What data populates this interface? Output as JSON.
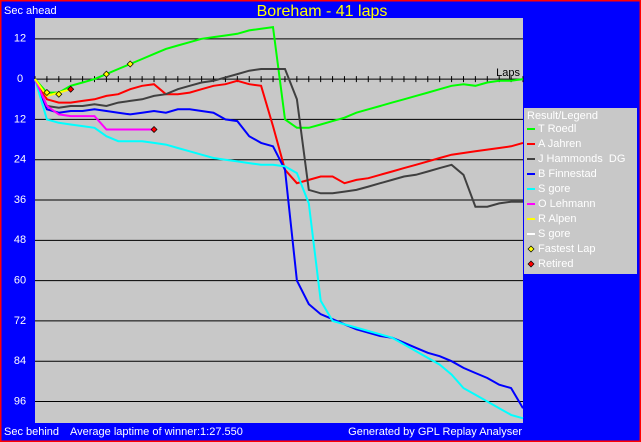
{
  "chart_data": {
    "type": "line",
    "title": "Boreham - 41 laps",
    "y_label": "Sec ahead",
    "y_label_bottom": "Sec behind",
    "x_label": "Laps",
    "note": "Average laptime of winner:1:27.550",
    "credit": "Generated by GPL Replay Analyser",
    "legend_title": "Result/Legend",
    "grid": true,
    "xlim": [
      0,
      41
    ],
    "ylim": [
      -102.4,
      18.2
    ],
    "yticks": [
      {
        "value": 12,
        "label": "12"
      },
      0,
      {
        "value": -12,
        "label": "12"
      },
      {
        "value": -24,
        "label": "24"
      },
      {
        "value": -36,
        "label": "36"
      },
      {
        "value": -48,
        "label": "48"
      },
      {
        "value": -60,
        "label": "60"
      },
      {
        "value": -72,
        "label": "72"
      },
      {
        "value": -84,
        "label": "84"
      },
      {
        "value": -96,
        "label": "96"
      }
    ],
    "x": [
      0,
      1,
      2,
      3,
      4,
      5,
      6,
      7,
      8,
      9,
      10,
      11,
      12,
      13,
      14,
      15,
      16,
      17,
      18,
      19,
      20,
      21,
      22,
      23,
      24,
      25,
      26,
      27,
      28,
      29,
      30,
      31,
      32,
      33,
      34,
      35,
      36,
      37,
      38,
      39,
      40,
      41
    ],
    "series": [
      {
        "name": "T Roedl",
        "color": "#00ff00",
        "values": [
          0,
          -4,
          -4,
          -2,
          -1,
          0,
          1.5,
          3,
          4.5,
          6,
          7.5,
          9,
          10,
          11,
          12,
          12.5,
          13,
          13.5,
          14.5,
          15,
          15.5,
          -12,
          -14.5,
          -14.5,
          -13.5,
          -12.5,
          -11.5,
          -10,
          -9,
          -8,
          -7,
          -6,
          -5,
          -4,
          -3,
          -2,
          -1.5,
          -2,
          -1,
          -0.5,
          -0.5,
          0
        ]
      },
      {
        "name": "A Jahren",
        "color": "#ff0000",
        "values": [
          0,
          -6,
          -7,
          -7,
          -6.5,
          -6,
          -5,
          -4.5,
          -3,
          -2,
          -1.5,
          -4.5,
          -4.5,
          -4,
          -3,
          -2,
          -1.5,
          -0.5,
          -1.5,
          -2,
          -14,
          -27,
          -31,
          -30,
          -29,
          -29,
          -31,
          -30,
          -29.5,
          -28.5,
          -27.5,
          -26.5,
          -25.5,
          -24.5,
          -23.5,
          -22.5,
          -22,
          -21.5,
          -21,
          -20.5,
          -20,
          -19
        ]
      },
      {
        "name": "J Hammonds  DG",
        "color": "#404040",
        "values": [
          0,
          -8,
          -8.5,
          -8,
          -8,
          -7.5,
          -8,
          -7,
          -6.5,
          -6,
          -5,
          -4.5,
          -3,
          -2,
          -1,
          -0.5,
          0.5,
          1.5,
          2.5,
          3,
          3,
          3,
          -6,
          -33,
          -34,
          -34,
          -33.5,
          -33,
          -32,
          -31,
          -30,
          -29,
          -28.5,
          -27.5,
          -26.5,
          -25.5,
          -28.5,
          -38,
          -38,
          -37,
          -36.5,
          -36.5
        ]
      },
      {
        "name": "B Finnestad",
        "color": "#0000ff",
        "values": [
          0,
          -9,
          -10,
          -9.5,
          -9.5,
          -9,
          -9.5,
          -10,
          -10.5,
          -10,
          -9.5,
          -10,
          -9,
          -9,
          -9.5,
          -10,
          -12,
          -12.5,
          -17,
          -19,
          -20,
          -27,
          -60,
          -67,
          -70,
          -71.5,
          -73,
          -74.5,
          -75.5,
          -76.5,
          -77,
          -78.5,
          -80,
          -81.5,
          -82.5,
          -84,
          -86,
          -87.5,
          -89,
          -91,
          -92,
          -98
        ]
      },
      {
        "name": "S gore",
        "color": "#00ffff",
        "values": [
          0,
          -12,
          -13,
          -13.5,
          -14,
          -14.5,
          -17,
          -18.5,
          -18.5,
          -18.5,
          -19,
          -19.5,
          -20.5,
          -21.5,
          -22.5,
          -23.5,
          -24,
          -24.5,
          -25,
          -25.5,
          -25.5,
          -26,
          -28,
          -37,
          -66,
          -72,
          -73,
          -74,
          -75,
          -76,
          -77,
          -79,
          -81,
          -83,
          -85,
          -88,
          -92,
          -94,
          -96,
          -98,
          -100,
          -101
        ]
      },
      {
        "name": "O Lehmann",
        "color": "#ff00ff",
        "values": [
          0,
          -8,
          -10.5,
          -11,
          -11,
          -11,
          -15,
          -15,
          -15,
          -15,
          -15,
          null,
          null,
          null,
          null,
          null,
          null,
          null,
          null,
          null,
          null,
          null,
          null,
          null,
          null,
          null,
          null,
          null,
          null,
          null,
          null,
          null,
          null,
          null,
          null,
          null,
          null,
          null,
          null,
          null,
          null,
          null
        ]
      },
      {
        "name": "R Alpen",
        "color": "#ffff00",
        "values": [
          0,
          -5,
          -4,
          -3,
          null,
          null,
          null,
          null,
          null,
          null,
          null,
          null,
          null,
          null,
          null,
          null,
          null,
          null,
          null,
          null,
          null,
          null,
          null,
          null,
          null,
          null,
          null,
          null,
          null,
          null,
          null,
          null,
          null,
          null,
          null,
          null,
          null,
          null,
          null,
          null,
          null,
          null
        ]
      },
      {
        "name": "S gore",
        "color": "#ffffff",
        "values": [
          null,
          null,
          null,
          null,
          null,
          null,
          null,
          null,
          null,
          null,
          null,
          null,
          null,
          null,
          null,
          null,
          null,
          null,
          null,
          null,
          null,
          null,
          null,
          null,
          null,
          null,
          null,
          null,
          null,
          null,
          null,
          null,
          null,
          null,
          null,
          null,
          null,
          null,
          null,
          null,
          null,
          null
        ]
      }
    ],
    "markers": [
      {
        "name": "Fastest Lap",
        "color": "#ffff00",
        "x": [
          1,
          2,
          6,
          8
        ],
        "y": [
          -4,
          -4.5,
          1.5,
          4.5
        ]
      },
      {
        "name": "Retired",
        "color": "#ff0000",
        "x": [
          3,
          10
        ],
        "y": [
          -3,
          -15
        ]
      }
    ]
  }
}
